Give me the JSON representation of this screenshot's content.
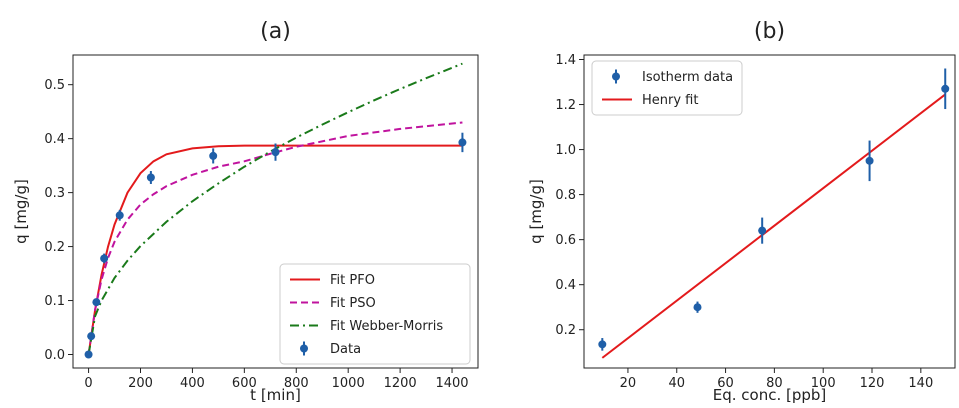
{
  "chart_data": [
    {
      "type": "scatter",
      "title": "(a)",
      "xlabel": "t [min]",
      "ylabel": "q [mg/g]",
      "xlim": [
        -60,
        1500
      ],
      "ylim": [
        -0.025,
        0.555
      ],
      "xticks": [
        0,
        200,
        400,
        600,
        800,
        1000,
        1200,
        1400
      ],
      "yticks": [
        0.0,
        0.1,
        0.2,
        0.3,
        0.4,
        0.5
      ],
      "ytick_labels": [
        "0.0",
        "0.1",
        "0.2",
        "0.3",
        "0.4",
        "0.5"
      ],
      "legend_position": "lower-right",
      "data": {
        "name": "Data",
        "color": "#1f5fa8",
        "points": [
          {
            "x": 0,
            "y": 0.0,
            "err": 0.006
          },
          {
            "x": 10,
            "y": 0.034,
            "err": 0.006
          },
          {
            "x": 30,
            "y": 0.097,
            "err": 0.006
          },
          {
            "x": 60,
            "y": 0.178,
            "err": 0.009
          },
          {
            "x": 120,
            "y": 0.258,
            "err": 0.01
          },
          {
            "x": 240,
            "y": 0.328,
            "err": 0.012
          },
          {
            "x": 480,
            "y": 0.368,
            "err": 0.014
          },
          {
            "x": 720,
            "y": 0.375,
            "err": 0.016
          },
          {
            "x": 1440,
            "y": 0.393,
            "err": 0.018
          }
        ]
      },
      "fits": [
        {
          "name": "Fit PFO",
          "color": "#e31a1c",
          "dash": "solid",
          "x": [
            0,
            25,
            50,
            75,
            100,
            150,
            200,
            250,
            300,
            400,
            500,
            600,
            700,
            800,
            1000,
            1200,
            1440
          ],
          "y": [
            0.0,
            0.082,
            0.148,
            0.2,
            0.241,
            0.3,
            0.336,
            0.358,
            0.371,
            0.382,
            0.386,
            0.387,
            0.387,
            0.387,
            0.387,
            0.387,
            0.387
          ]
        },
        {
          "name": "Fit PSO",
          "color": "#c0139e",
          "dash": "dashed",
          "x": [
            0,
            25,
            50,
            75,
            100,
            150,
            200,
            250,
            300,
            400,
            500,
            600,
            700,
            800,
            1000,
            1200,
            1440
          ],
          "y": [
            0.0,
            0.083,
            0.139,
            0.179,
            0.209,
            0.25,
            0.278,
            0.297,
            0.312,
            0.333,
            0.348,
            0.358,
            0.372,
            0.385,
            0.405,
            0.418,
            0.43
          ]
        },
        {
          "name": "Fit Webber-Morris",
          "color": "#1a7a1a",
          "dash": "dashdot",
          "x": [
            0,
            25,
            50,
            100,
            150,
            200,
            300,
            400,
            500,
            600,
            700,
            800,
            900,
            1000,
            1100,
            1200,
            1300,
            1440
          ],
          "y": [
            0.0,
            0.071,
            0.1,
            0.142,
            0.174,
            0.201,
            0.246,
            0.284,
            0.317,
            0.348,
            0.376,
            0.402,
            0.426,
            0.449,
            0.471,
            0.492,
            0.512,
            0.539
          ]
        }
      ]
    },
    {
      "type": "scatter",
      "title": "(b)",
      "xlabel": "Eq. conc. [ppb]",
      "ylabel": "q [mg/g]",
      "xlim": [
        2,
        154
      ],
      "ylim": [
        0.03,
        1.42
      ],
      "xticks": [
        20,
        40,
        60,
        80,
        100,
        120,
        140
      ],
      "yticks": [
        0.2,
        0.4,
        0.6,
        0.8,
        1.0,
        1.2,
        1.4
      ],
      "ytick_labels": [
        "0.2",
        "0.4",
        "0.6",
        "0.8",
        "1.0",
        "1.2",
        "1.4"
      ],
      "legend_position": "upper-left",
      "data": {
        "name": "Isotherm data",
        "color": "#1f5fa8",
        "points": [
          {
            "x": 9.5,
            "y": 0.135,
            "err": 0.028
          },
          {
            "x": 48.5,
            "y": 0.3,
            "err": 0.025
          },
          {
            "x": 75,
            "y": 0.64,
            "err": 0.058
          },
          {
            "x": 119,
            "y": 0.95,
            "err": 0.09
          },
          {
            "x": 150,
            "y": 1.27,
            "err": 0.09
          }
        ]
      },
      "fits": [
        {
          "name": "Henry fit",
          "color": "#e31a1c",
          "dash": "solid",
          "x": [
            9.5,
            150
          ],
          "y": [
            0.075,
            1.245
          ]
        }
      ]
    }
  ]
}
